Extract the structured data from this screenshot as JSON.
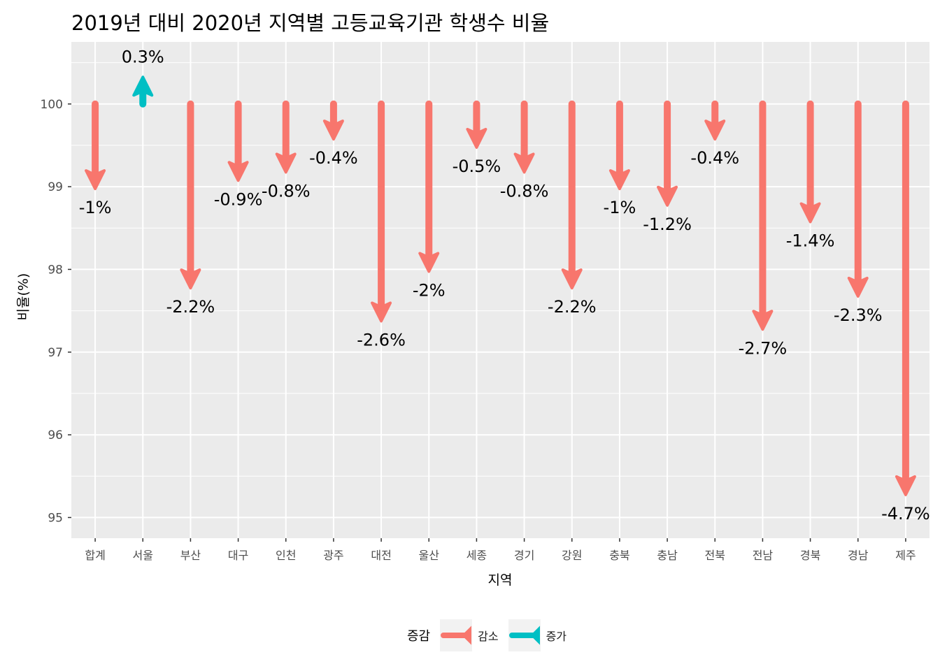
{
  "chart_data": {
    "type": "arrow",
    "title": "2019년 대비 2020년 지역별 고등교육기관 학생수 비율",
    "xlabel": "지역",
    "ylabel": "비율(%)",
    "ylim": [
      94.75,
      100.75
    ],
    "y_ticks": [
      95,
      96,
      97,
      98,
      99,
      100
    ],
    "baseline": 100,
    "grid": true,
    "legend_position": "bottom",
    "categories": [
      "합계",
      "서울",
      "부산",
      "대구",
      "인천",
      "광주",
      "대전",
      "울산",
      "세종",
      "경기",
      "강원",
      "충북",
      "충남",
      "전북",
      "전남",
      "경북",
      "경남",
      "제주"
    ],
    "values": [
      99.0,
      100.3,
      97.8,
      99.1,
      99.2,
      99.6,
      97.4,
      98.0,
      99.5,
      99.2,
      97.8,
      99.0,
      98.8,
      99.6,
      97.3,
      98.6,
      97.7,
      95.3
    ],
    "labels": [
      "-1%",
      "0.3%",
      "-2.2%",
      "-0.9%",
      "-0.8%",
      "-0.4%",
      "-2.6%",
      "-2%",
      "-0.5%",
      "-0.8%",
      "-2.2%",
      "-1%",
      "-1.2%",
      "-0.4%",
      "-2.7%",
      "-1.4%",
      "-2.3%",
      "-4.7%"
    ],
    "legend": {
      "title": "증감",
      "items": [
        {
          "label": "감소",
          "color": "#F8766D"
        },
        {
          "label": "증가",
          "color": "#00BFC4"
        }
      ]
    }
  }
}
